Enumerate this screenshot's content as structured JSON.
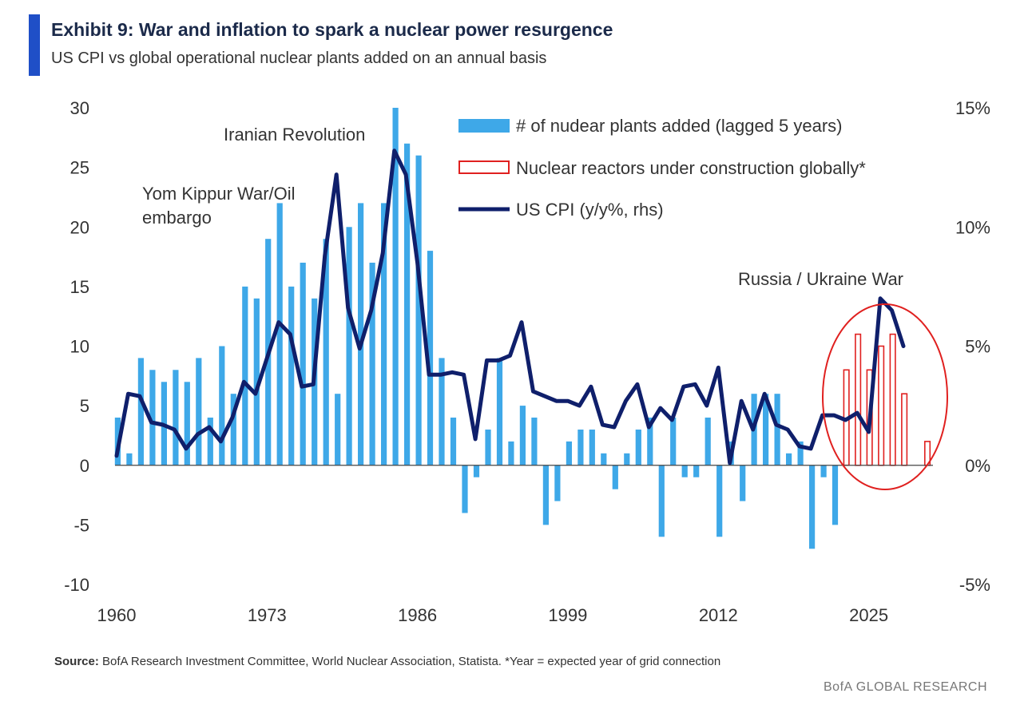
{
  "header": {
    "title": "Exhibit 9: War and inflation to spark a nuclear power resurgence",
    "subtitle": "US CPI vs global operational nuclear plants added on an annual basis"
  },
  "footer": {
    "source_label": "Source:",
    "source_text": "BofA Research Investment Committee, World Nuclear Association, Statista. *Year = expected year of grid connection",
    "brand": "BofA GLOBAL RESEARCH"
  },
  "colors": {
    "accent": "#1f4fc7",
    "bars": "#3ea8e8",
    "construction": "#e0201f",
    "cpi": "#0f1f6b",
    "circle": "#e0201f"
  },
  "chart_data": {
    "type": "bar",
    "title": "Exhibit 9: War and inflation to spark a nuclear power resurgence",
    "subtitle": "US CPI vs global operational nuclear plants added on an annual basis",
    "x_ticks": [
      "1960",
      "1973",
      "1986",
      "1999",
      "2012",
      "2025"
    ],
    "x_range": [
      1960,
      2030
    ],
    "y_left": {
      "range": [
        -10,
        30
      ],
      "ticks": [
        "30",
        "25",
        "20",
        "15",
        "10",
        "5",
        "0",
        "-5",
        "-10"
      ]
    },
    "y_right": {
      "range": [
        -5,
        15
      ],
      "ticks": [
        "15%",
        "10%",
        "5%",
        "0%",
        "-5%"
      ]
    },
    "legend": {
      "position": "top-right",
      "entries": [
        "# of nudear plants added (lagged 5 years)",
        "Nuclear reactors under construction globally*",
        "US CPI (y/y%, rhs)"
      ]
    },
    "annotations": [
      "Iranian Revolution",
      "Yom Kippur War/Oil",
      "embargo",
      "Russia / Ukraine War"
    ],
    "series": [
      {
        "name": "# of nudear plants added (lagged 5 years)",
        "type": "bar",
        "axis": "left",
        "x": [
          1960,
          1961,
          1962,
          1963,
          1964,
          1965,
          1966,
          1967,
          1968,
          1969,
          1970,
          1971,
          1972,
          1973,
          1974,
          1975,
          1976,
          1977,
          1978,
          1979,
          1980,
          1981,
          1982,
          1983,
          1984,
          1985,
          1986,
          1987,
          1988,
          1989,
          1990,
          1991,
          1992,
          1993,
          1994,
          1995,
          1996,
          1997,
          1998,
          1999,
          2000,
          2001,
          2002,
          2003,
          2004,
          2005,
          2006,
          2007,
          2008,
          2009,
          2010,
          2011,
          2012,
          2013,
          2014,
          2015,
          2016,
          2017,
          2018,
          2019,
          2020,
          2021,
          2022
        ],
        "values": [
          4,
          1,
          9,
          8,
          7,
          8,
          7,
          9,
          4,
          10,
          6,
          15,
          14,
          19,
          22,
          15,
          17,
          14,
          19,
          6,
          20,
          22,
          17,
          22,
          30,
          27,
          26,
          18,
          9,
          4,
          -4,
          -1,
          3,
          9,
          2,
          5,
          4,
          -5,
          -3,
          2,
          3,
          3,
          1,
          -2,
          1,
          3,
          4,
          -6,
          4,
          -1,
          -1,
          4,
          -6,
          2,
          -3,
          6,
          6,
          6,
          1,
          2,
          -7,
          -1,
          -5
        ]
      },
      {
        "name": "Nuclear reactors under construction globally*",
        "type": "bar",
        "axis": "left",
        "x": [
          2023,
          2024,
          2025,
          2026,
          2027,
          2028,
          2030
        ],
        "values": [
          8,
          11,
          8,
          10,
          11,
          6,
          2
        ]
      },
      {
        "name": "US CPI (y/y%, rhs)",
        "type": "line",
        "axis": "right",
        "x": [
          1960,
          1961,
          1962,
          1963,
          1964,
          1965,
          1966,
          1967,
          1968,
          1969,
          1970,
          1971,
          1972,
          1973,
          1974,
          1975,
          1976,
          1977,
          1978,
          1979,
          1980,
          1981,
          1982,
          1983,
          1984,
          1985,
          1986,
          1987,
          1988,
          1989,
          1990,
          1991,
          1992,
          1993,
          1994,
          1995,
          1996,
          1997,
          1998,
          1999,
          2000,
          2001,
          2002,
          2003,
          2004,
          2005,
          2006,
          2007,
          2008,
          2009,
          2010,
          2011,
          2012,
          2013,
          2014,
          2015,
          2016,
          2017,
          2018,
          2019,
          2020,
          2021,
          2022,
          2023,
          2024,
          2025,
          2026,
          2027,
          2028
        ],
        "values": [
          0.4,
          3.0,
          2.9,
          1.8,
          1.7,
          1.5,
          0.7,
          1.3,
          1.6,
          1.0,
          2.0,
          3.5,
          3.0,
          4.5,
          6.0,
          5.5,
          3.3,
          3.4,
          8.8,
          12.2,
          6.6,
          4.9,
          6.5,
          8.9,
          13.2,
          12.2,
          8.5,
          3.8,
          3.8,
          3.9,
          3.8,
          1.1,
          4.4,
          4.4,
          4.6,
          6.0,
          3.1,
          2.9,
          2.7,
          2.7,
          2.5,
          3.3,
          1.7,
          1.6,
          2.7,
          3.4,
          1.6,
          2.4,
          1.9,
          3.3,
          3.4,
          2.5,
          4.1,
          0.1,
          2.7,
          1.5,
          3.0,
          1.7,
          1.5,
          0.8,
          0.7,
          2.1,
          2.1,
          1.9,
          2.2,
          1.4,
          7.0,
          6.5,
          5.0
        ]
      }
    ]
  }
}
